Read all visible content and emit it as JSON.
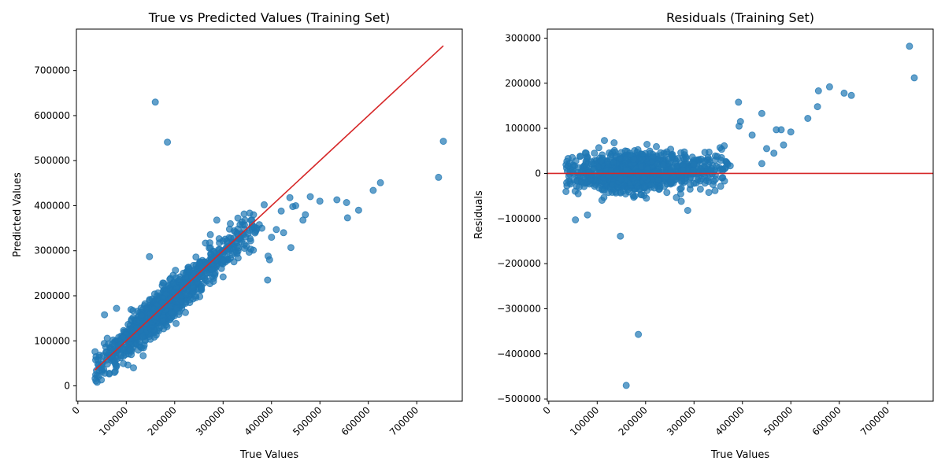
{
  "colors": {
    "points": "#1f77b4",
    "reference_line": "#d62728"
  },
  "chart_data": [
    {
      "type": "scatter",
      "title": "True vs Predicted Values (Training Set)",
      "xlabel": "True Values",
      "ylabel": "Predicted Values",
      "xlim": [
        -3000,
        794000
      ],
      "ylim": [
        -34000,
        792000
      ],
      "xticks": [
        0,
        100000,
        200000,
        300000,
        400000,
        500000,
        600000,
        700000
      ],
      "yticks": [
        0,
        100000,
        200000,
        300000,
        400000,
        500000,
        600000,
        700000
      ],
      "x_tick_rotation": 45,
      "grid": false,
      "reference_line": {
        "from": [
          35000,
          35000
        ],
        "to": [
          755000,
          755000
        ],
        "color": "#d62728"
      },
      "series": [
        {
          "color": "#1f77b4",
          "outliers": {
            "x": [
              160000,
              185000,
              148000,
              55000,
              40000,
              65000,
              115000,
              135000,
              80000,
              300000,
              315000,
              392000,
              393000,
              396000,
              440000,
              465000,
              470000,
              480000,
              500000,
              535000,
              555000,
              557000,
              580000,
              610000,
              625000,
              745000,
              755000,
              385000,
              438000,
              444000,
              450000,
              410000,
              420000,
              425000,
              400000,
              380000,
              360000,
              345000,
              335000,
              287000
            ],
            "y": [
              630000,
              541000,
              287000,
              158000,
              8000,
              28000,
              40000,
              67000,
              172000,
              242000,
              360000,
              235000,
              288000,
              280000,
              307000,
              368000,
              380000,
              420000,
              410000,
              413000,
              407000,
              373000,
              390000,
              434000,
              451000,
              463000,
              543000,
              402000,
              418000,
              398000,
              400000,
              347000,
              388000,
              340000,
              330000,
              350000,
              358000,
              368000,
              358000,
              368000
            ]
          },
          "trend": {
            "slope": 0.94,
            "intercept": 8000,
            "x_range": [
              35000,
              380000
            ]
          }
        }
      ]
    },
    {
      "type": "scatter",
      "title": "Residuals (Training Set)",
      "xlabel": "True Values",
      "ylabel": "Residuals",
      "xlim": [
        -3000,
        794000
      ],
      "ylim": [
        -505000,
        320000
      ],
      "xticks": [
        0,
        100000,
        200000,
        300000,
        400000,
        500000,
        600000,
        700000
      ],
      "yticks": [
        -500000,
        -400000,
        -300000,
        -200000,
        -100000,
        0,
        100000,
        200000,
        300000
      ],
      "x_tick_rotation": 45,
      "grid": false,
      "reference_line": {
        "y": 0,
        "color": "#d62728"
      },
      "series": [
        {
          "color": "#1f77b4",
          "outliers": {
            "x": [
              160000,
              185000,
              148000,
              55000,
              80000,
              40000,
              65000,
              115000,
              135000,
              745000,
              755000,
              580000,
              557000,
              555000,
              610000,
              625000,
              535000,
              500000,
              480000,
              470000,
              465000,
              392000,
              393000,
              440000,
              396000,
              420000,
              450000,
              440000,
              485000,
              287000
            ],
            "y": [
              -470000,
              -357000,
              -139000,
              -103000,
              -92000,
              33000,
              38000,
              73000,
              68000,
              282000,
              212000,
              192000,
              183000,
              148000,
              178000,
              173000,
              122000,
              92000,
              97000,
              97000,
              45000,
              158000,
              105000,
              133000,
              115000,
              85000,
              55000,
              22000,
              63000,
              -82000
            ]
          },
          "trend": {
            "slope": 0,
            "intercept": 0,
            "x_range": [
              35000,
              380000
            ]
          }
        }
      ]
    }
  ]
}
